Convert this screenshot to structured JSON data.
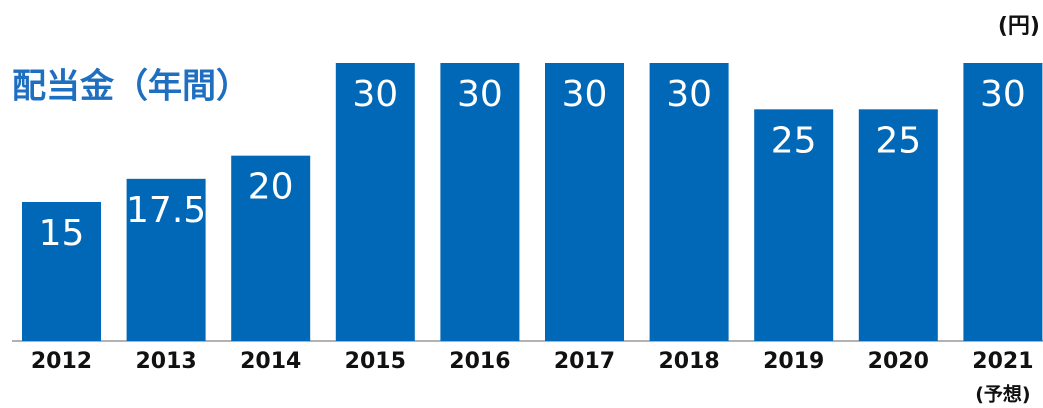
{
  "chart_data": {
    "type": "bar",
    "title": "配当金（年間）",
    "unit": "(円)",
    "categories": [
      "2012",
      "2013",
      "2014",
      "2015",
      "2016",
      "2017",
      "2018",
      "2019",
      "2020",
      "2021"
    ],
    "annotation": "(予想)",
    "values": [
      15,
      17.5,
      20,
      30,
      30,
      30,
      30,
      25,
      25,
      30
    ],
    "color": "#0068b7"
  }
}
